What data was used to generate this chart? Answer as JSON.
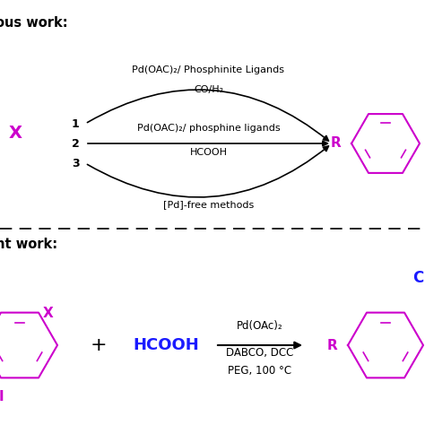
{
  "bg_color": "#ffffff",
  "magenta": "#CC00CC",
  "blue": "#1a1aff",
  "black": "#000000",
  "top_label": "ous work:",
  "bottom_label": "nt work:",
  "top_reaction": {
    "label1": "Pd(OAC)₂/ Phosphinite Ligands",
    "label2": "CO/H₂",
    "label3": "Pd(OAC)₂/ phosphine ligands",
    "label4": "HCOOH",
    "label5": "[Pd]-free methods",
    "nums": [
      "1",
      "2",
      "3"
    ]
  },
  "bottom_reaction": {
    "cat1": "Pd(OAc)₂",
    "cat2": "DABCO, DCC",
    "cat3": "PEG, 100 °C"
  }
}
